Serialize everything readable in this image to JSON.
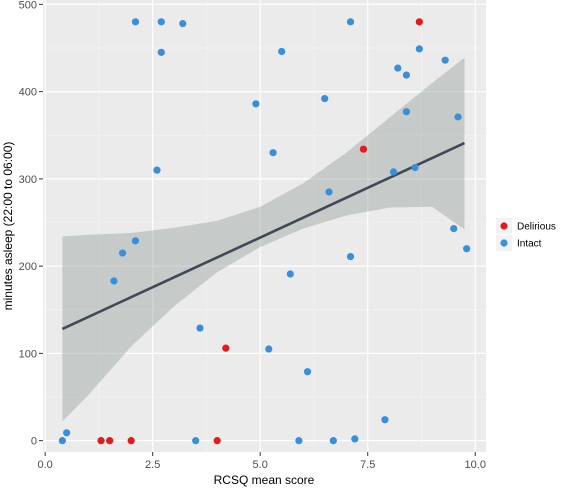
{
  "chart_data": {
    "type": "scatter",
    "xlabel": "RCSQ mean score",
    "ylabel": "minutes asleep (22:00 to 06:00)",
    "xlim": [
      -0.05,
      10.25
    ],
    "ylim": [
      -13,
      505
    ],
    "x_ticks": [
      0.0,
      2.5,
      5.0,
      7.5,
      10.0
    ],
    "x_tick_labels": [
      "0.0",
      "2.5",
      "5.0",
      "7.5",
      "10.0"
    ],
    "y_ticks": [
      0,
      100,
      200,
      300,
      400,
      500
    ],
    "y_tick_labels": [
      "0",
      "100",
      "200",
      "300",
      "400",
      "500"
    ],
    "grid": true,
    "background_color": "#ebebeb",
    "legend": {
      "position": "right"
    },
    "series": [
      {
        "name": "Delirious",
        "color": "#e41a1c",
        "points": [
          {
            "x": 1.3,
            "y": 0
          },
          {
            "x": 1.5,
            "y": 0
          },
          {
            "x": 2.0,
            "y": 0
          },
          {
            "x": 4.0,
            "y": 0
          },
          {
            "x": 4.2,
            "y": 106
          },
          {
            "x": 7.4,
            "y": 334
          },
          {
            "x": 8.7,
            "y": 480
          }
        ]
      },
      {
        "name": "Intact",
        "color": "#3a8fd9",
        "points": [
          {
            "x": 0.4,
            "y": 0
          },
          {
            "x": 0.5,
            "y": 9
          },
          {
            "x": 1.6,
            "y": 183
          },
          {
            "x": 1.8,
            "y": 215
          },
          {
            "x": 2.1,
            "y": 229
          },
          {
            "x": 2.1,
            "y": 480
          },
          {
            "x": 2.6,
            "y": 310
          },
          {
            "x": 2.7,
            "y": 445
          },
          {
            "x": 2.7,
            "y": 480
          },
          {
            "x": 3.2,
            "y": 478
          },
          {
            "x": 3.5,
            "y": 0
          },
          {
            "x": 3.6,
            "y": 129
          },
          {
            "x": 4.9,
            "y": 386
          },
          {
            "x": 5.2,
            "y": 105
          },
          {
            "x": 5.3,
            "y": 330
          },
          {
            "x": 5.5,
            "y": 446
          },
          {
            "x": 5.7,
            "y": 191
          },
          {
            "x": 5.9,
            "y": 0
          },
          {
            "x": 6.1,
            "y": 79
          },
          {
            "x": 6.5,
            "y": 392
          },
          {
            "x": 6.6,
            "y": 285
          },
          {
            "x": 6.7,
            "y": 0
          },
          {
            "x": 7.1,
            "y": 211
          },
          {
            "x": 7.1,
            "y": 480
          },
          {
            "x": 7.2,
            "y": 2
          },
          {
            "x": 7.9,
            "y": 24
          },
          {
            "x": 8.1,
            "y": 308
          },
          {
            "x": 8.2,
            "y": 427
          },
          {
            "x": 8.4,
            "y": 377
          },
          {
            "x": 8.4,
            "y": 419
          },
          {
            "x": 8.6,
            "y": 313
          },
          {
            "x": 8.7,
            "y": 449
          },
          {
            "x": 9.3,
            "y": 436
          },
          {
            "x": 9.5,
            "y": 243
          },
          {
            "x": 9.6,
            "y": 371
          },
          {
            "x": 9.8,
            "y": 220
          }
        ]
      }
    ],
    "regression": {
      "x": [
        0.4,
        9.75
      ],
      "y": [
        128,
        341
      ],
      "line_color": "#3f4a55",
      "ci_color": "#9aa39f",
      "ci": [
        {
          "x": 0.4,
          "lower": 22,
          "upper": 234
        },
        {
          "x": 1.0,
          "lower": 52,
          "upper": 236
        },
        {
          "x": 2.0,
          "lower": 108,
          "upper": 238
        },
        {
          "x": 3.0,
          "lower": 154,
          "upper": 244
        },
        {
          "x": 4.0,
          "lower": 193,
          "upper": 252
        },
        {
          "x": 5.0,
          "lower": 222,
          "upper": 268
        },
        {
          "x": 6.0,
          "lower": 243,
          "upper": 295
        },
        {
          "x": 7.0,
          "lower": 258,
          "upper": 330
        },
        {
          "x": 8.0,
          "lower": 267,
          "upper": 370
        },
        {
          "x": 9.0,
          "lower": 268,
          "upper": 410
        },
        {
          "x": 9.75,
          "lower": 242,
          "upper": 439
        }
      ]
    }
  }
}
